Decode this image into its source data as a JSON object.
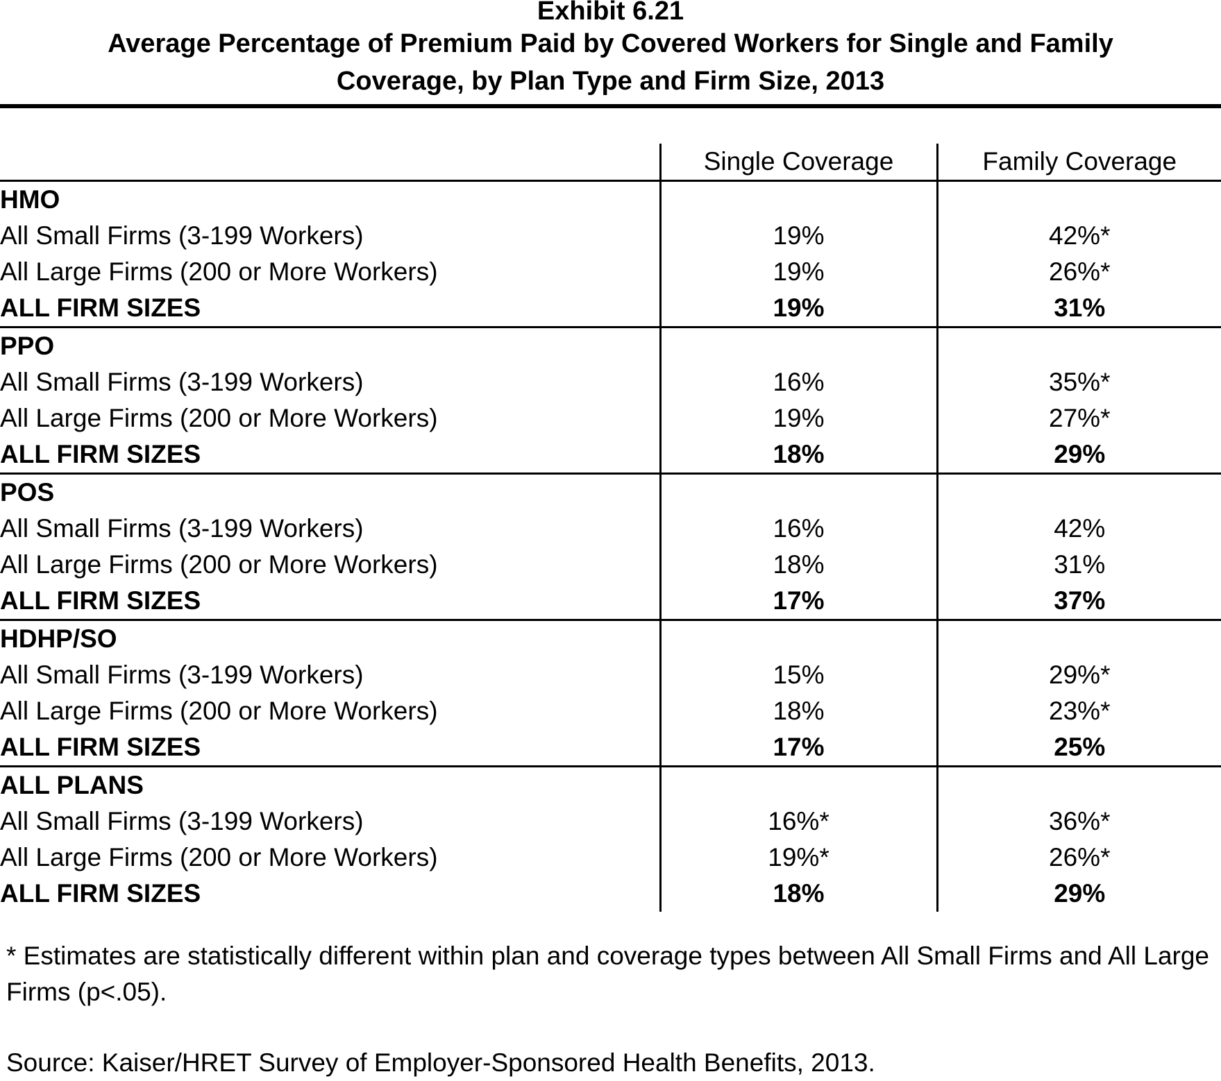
{
  "exhibit_number": "Exhibit 6.21",
  "title_line1": "Average Percentage of Premium Paid by Covered Workers for Single and Family",
  "title_line2": "Coverage, by Plan Type and Firm Size, 2013",
  "footnote": "* Estimates are statistically different within plan and coverage types between All Small Firms and All Large Firms (p<.05).",
  "source": "Source: Kaiser/HRET Survey of Employer-Sponsored Health Benefits, 2013.",
  "chart_data": {
    "type": "table",
    "columns": [
      "Single Coverage",
      "Family Coverage"
    ],
    "groups": [
      {
        "name": "HMO",
        "rows": [
          {
            "label": "All Small Firms (3-199 Workers)",
            "single": "19%",
            "family": "42%*"
          },
          {
            "label": "All Large Firms (200 or More Workers)",
            "single": "19%",
            "family": "26%*"
          },
          {
            "label": "ALL FIRM SIZES",
            "single": "19%",
            "family": "31%"
          }
        ]
      },
      {
        "name": "PPO",
        "rows": [
          {
            "label": "All Small Firms (3-199 Workers)",
            "single": "16%",
            "family": "35%*"
          },
          {
            "label": "All Large Firms (200 or More Workers)",
            "single": "19%",
            "family": "27%*"
          },
          {
            "label": "ALL FIRM SIZES",
            "single": "18%",
            "family": "29%"
          }
        ]
      },
      {
        "name": "POS",
        "rows": [
          {
            "label": "All Small Firms (3-199 Workers)",
            "single": "16%",
            "family": "42%"
          },
          {
            "label": "All Large Firms (200 or More Workers)",
            "single": "18%",
            "family": "31%"
          },
          {
            "label": "ALL FIRM SIZES",
            "single": "17%",
            "family": "37%"
          }
        ]
      },
      {
        "name": "HDHP/SO",
        "rows": [
          {
            "label": "All Small Firms (3-199 Workers)",
            "single": "15%",
            "family": "29%*"
          },
          {
            "label": "All Large Firms (200 or More Workers)",
            "single": "18%",
            "family": "23%*"
          },
          {
            "label": "ALL FIRM SIZES",
            "single": "17%",
            "family": "25%"
          }
        ]
      },
      {
        "name": "ALL PLANS",
        "rows": [
          {
            "label": "All Small Firms (3-199 Workers)",
            "single": "16%*",
            "family": "36%*"
          },
          {
            "label": "All Large Firms (200 or More Workers)",
            "single": "19%*",
            "family": "26%*"
          },
          {
            "label": "ALL FIRM SIZES",
            "single": "18%",
            "family": "29%"
          }
        ]
      }
    ]
  }
}
